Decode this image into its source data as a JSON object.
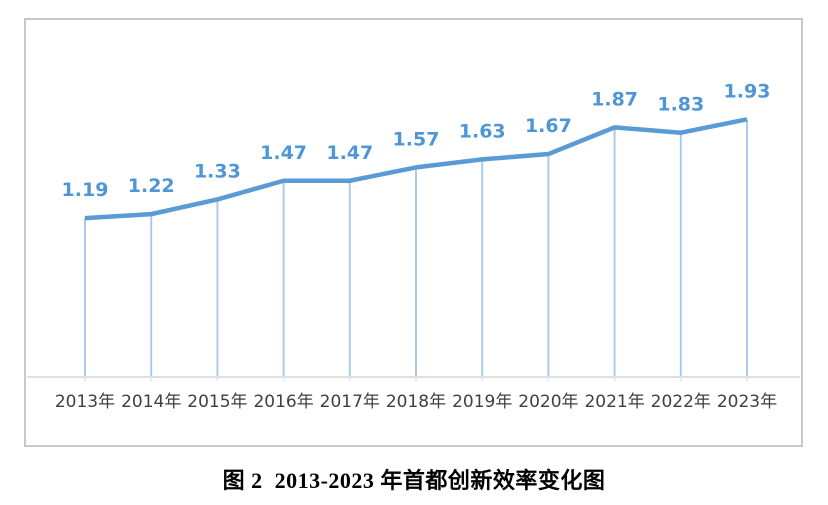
{
  "figure": {
    "caption": "图 2  2013-2023 年首都创新效率变化图"
  },
  "chart_data": {
    "type": "line",
    "title": "",
    "xlabel": "",
    "ylabel": "",
    "categories": [
      "2013年",
      "2014年",
      "2015年",
      "2016年",
      "2017年",
      "2018年",
      "2019年",
      "2020年",
      "2021年",
      "2022年",
      "2023年"
    ],
    "values": [
      1.19,
      1.22,
      1.33,
      1.47,
      1.47,
      1.57,
      1.63,
      1.67,
      1.87,
      1.83,
      1.93
    ],
    "ylim": [
      0,
      2.7
    ],
    "grid": false,
    "legend": false,
    "data_labels_shown": true,
    "colors": {
      "line": "#5b9bd5",
      "data_label": "#4e96d6",
      "drop_line": "#a9cbea",
      "axis_line": "#dfdfdf",
      "tick": "#e7e7e7",
      "x_label": "#3f3f3f",
      "frame_border": "#c9c9c9",
      "caption_text": "#000000"
    }
  }
}
